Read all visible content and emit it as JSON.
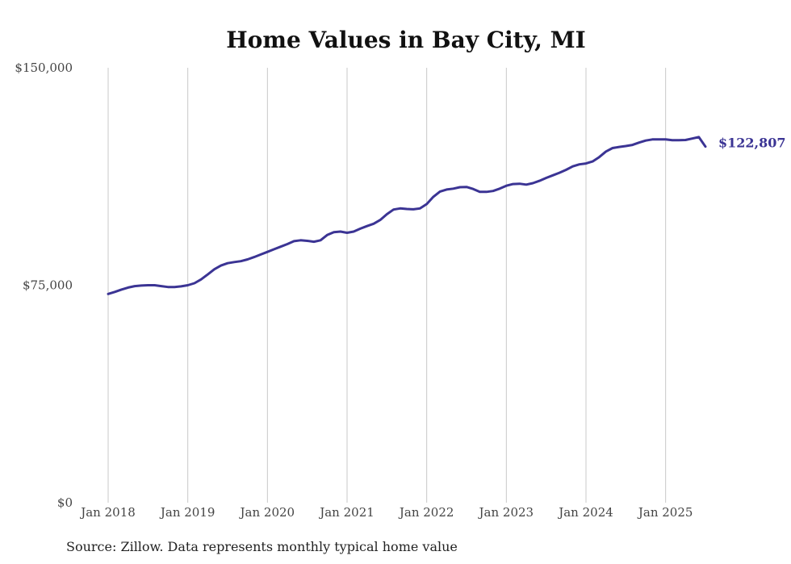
{
  "chart_data": {
    "type": "line",
    "title": "Home Values in Bay City, MI",
    "xlabel": "",
    "ylabel": "",
    "ylim": [
      0,
      150000
    ],
    "y_ticks": [
      {
        "value": 0,
        "label": "$0"
      },
      {
        "value": 75000,
        "label": "$75,000"
      },
      {
        "value": 150000,
        "label": "$150,000"
      }
    ],
    "x_ticks": [
      "Jan 2018",
      "Jan 2019",
      "Jan 2020",
      "Jan 2021",
      "Jan 2022",
      "Jan 2023",
      "Jan 2024",
      "Jan 2025"
    ],
    "xlim": [
      "2018-01",
      "2025-07"
    ],
    "grid": "vertical",
    "line_color": "#3b3494",
    "end_label": "$122,807",
    "series": [
      {
        "x": [
          "2018-01",
          "2018-02",
          "2018-03",
          "2018-04",
          "2018-05",
          "2018-06",
          "2018-07",
          "2018-08",
          "2018-09",
          "2018-10",
          "2018-11",
          "2018-12",
          "2019-01",
          "2019-02",
          "2019-03",
          "2019-04",
          "2019-05",
          "2019-06",
          "2019-07",
          "2019-08",
          "2019-09",
          "2019-10",
          "2019-11",
          "2019-12",
          "2020-01",
          "2020-02",
          "2020-03",
          "2020-04",
          "2020-05",
          "2020-06",
          "2020-07",
          "2020-08",
          "2020-09",
          "2020-10",
          "2020-11",
          "2020-12",
          "2021-01",
          "2021-02",
          "2021-03",
          "2021-04",
          "2021-05",
          "2021-06",
          "2021-07",
          "2021-08",
          "2021-09",
          "2021-10",
          "2021-11",
          "2021-12",
          "2022-01",
          "2022-02",
          "2022-03",
          "2022-04",
          "2022-05",
          "2022-06",
          "2022-07",
          "2022-08",
          "2022-09",
          "2022-10",
          "2022-11",
          "2022-12",
          "2023-01",
          "2023-02",
          "2023-03",
          "2023-04",
          "2023-05",
          "2023-06",
          "2023-07",
          "2023-08",
          "2023-09",
          "2023-10",
          "2023-11",
          "2023-12",
          "2024-01",
          "2024-02",
          "2024-03",
          "2024-04",
          "2024-05",
          "2024-06",
          "2024-07",
          "2024-08",
          "2024-09",
          "2024-10",
          "2024-11",
          "2024-12",
          "2025-01",
          "2025-02",
          "2025-03",
          "2025-04",
          "2025-05",
          "2025-06",
          "2025-07"
        ],
        "values": [
          72000,
          72700,
          73500,
          74200,
          74700,
          74900,
          75000,
          75000,
          74700,
          74400,
          74400,
          74600,
          75000,
          75700,
          77000,
          78700,
          80500,
          81800,
          82600,
          83000,
          83300,
          83900,
          84700,
          85600,
          86500,
          87400,
          88300,
          89200,
          90200,
          90500,
          90300,
          90000,
          90500,
          92300,
          93300,
          93500,
          93100,
          93500,
          94500,
          95400,
          96200,
          97500,
          99500,
          101100,
          101500,
          101300,
          101200,
          101500,
          103000,
          105500,
          107300,
          108000,
          108300,
          108800,
          108900,
          108200,
          107200,
          107200,
          107500,
          108300,
          109300,
          109900,
          110000,
          109700,
          110200,
          111000,
          112000,
          112900,
          113800,
          114800,
          116000,
          116700,
          117000,
          117700,
          119200,
          121100,
          122300,
          122700,
          123000,
          123400,
          124200,
          124900,
          125300,
          125300,
          125300,
          125000,
          125000,
          125100,
          125600,
          126100,
          122807
        ]
      }
    ],
    "source_note": "Source: Zillow. Data represents monthly typical home value"
  }
}
